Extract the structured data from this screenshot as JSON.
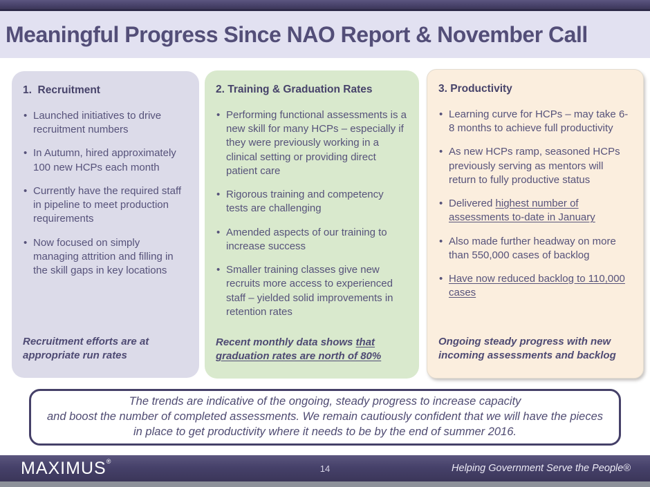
{
  "slide": {
    "title": "Meaningful Progress Since NAO Report & November Call",
    "page_number": "14",
    "logo_text": "MAXIMUS",
    "logo_reg": "®",
    "tagline": "Helping Government Serve the People®"
  },
  "colors": {
    "accent_dark_purple": "#453f66",
    "title_text": "#534e78",
    "title_band_bg": "#e2e1f1",
    "card_recruitment_bg": "#dcdbe9",
    "card_training_bg": "#d9e9cd",
    "card_productivity_bg": "#fbeede",
    "body_text": "#56527a",
    "footer_bar_bg": "#46416a",
    "bottom_strip": "#8d919a"
  },
  "cards": [
    {
      "heading": "1.  Recruitment",
      "bullets": [
        [
          {
            "t": "Launched initiatives to drive recruitment numbers"
          }
        ],
        [
          {
            "t": "In Autumn, hired approximately 100 new HCPs each month"
          }
        ],
        [
          {
            "t": "Currently have the required staff in pipeline to meet production requirements"
          }
        ],
        [
          {
            "t": "Now focused on simply managing attrition and filling in the skill gaps in key locations"
          }
        ]
      ],
      "footer": [
        {
          "t": "Recruitment efforts are at appropriate run rates"
        }
      ]
    },
    {
      "heading": "2. Training & Graduation Rates",
      "bullets": [
        [
          {
            "t": "Performing functional assessments is a new skill for many HCPs – especially if they were previously working in a clinical setting or providing direct patient care"
          }
        ],
        [
          {
            "t": "Rigorous training and competency tests are challenging"
          }
        ],
        [
          {
            "t": "Amended aspects of our training to increase success"
          }
        ],
        [
          {
            "t": "Smaller training classes give new recruits more access to experienced staff – yielded solid improvements in retention rates"
          }
        ]
      ],
      "footer": [
        {
          "t": "Recent monthly data shows "
        },
        {
          "t": "that graduation rates are north of 80%",
          "u": true
        }
      ]
    },
    {
      "heading": "3. Productivity",
      "bullets": [
        [
          {
            "t": "Learning curve for HCPs – may take 6-8 months to achieve full productivity"
          }
        ],
        [
          {
            "t": "As new HCPs ramp, seasoned HCPs previously serving as mentors will return to fully productive status"
          }
        ],
        [
          {
            "t": "Delivered "
          },
          {
            "t": "highest number of assessments to-date in January",
            "u": true
          }
        ],
        [
          {
            "t": "Also made further headway on more than 550,000 cases of backlog"
          }
        ],
        [
          {
            "t": "Have now reduced backlog to 110,000 cases",
            "u": true
          }
        ]
      ],
      "footer": [
        {
          "t": "Ongoing steady progress with new incoming assessments and backlog"
        }
      ]
    }
  ],
  "note": {
    "lines": [
      "The trends are indicative of the ongoing, steady progress to increase capacity",
      "and boost the number of completed assessments. We remain cautiously confident that we will have the pieces",
      "in place to get productivity where it needs to be by the end of summer 2016."
    ]
  }
}
